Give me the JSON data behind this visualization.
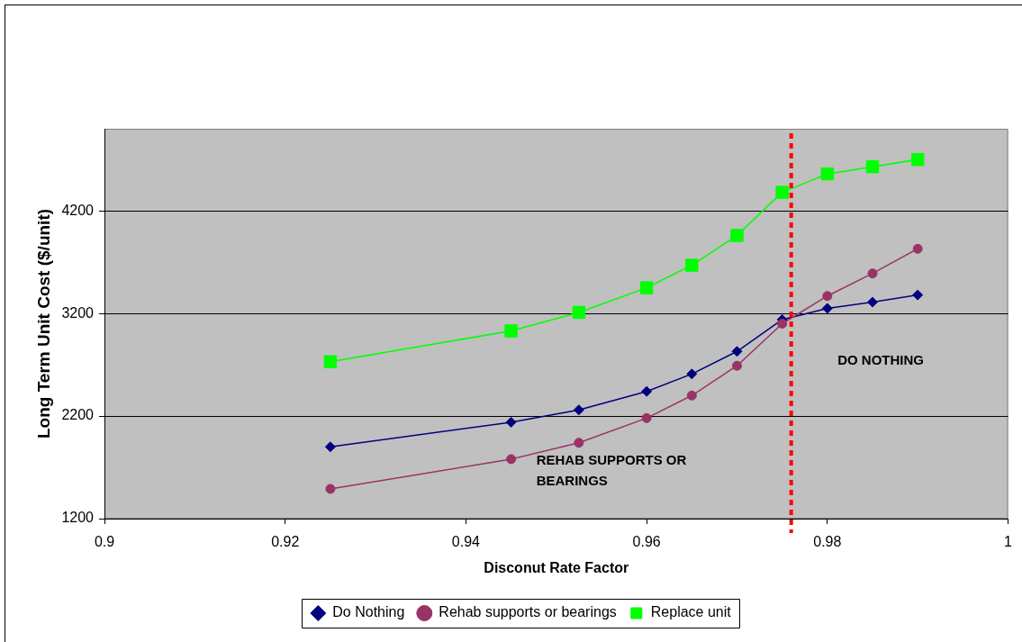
{
  "chart_data": {
    "type": "line",
    "xlabel": "Disconut Rate Factor",
    "ylabel": "Long Term Unit Cost ($/unit)",
    "x": [
      0.925,
      0.945,
      0.9525,
      0.96,
      0.965,
      0.97,
      0.975,
      0.98,
      0.985,
      0.99
    ],
    "series": [
      {
        "name": "Do Nothing",
        "color": "#000080",
        "marker": "diamond",
        "values": [
          1900,
          2140,
          2260,
          2440,
          2610,
          2830,
          3140,
          3250,
          3310,
          3380
        ]
      },
      {
        "name": "Rehab supports or bearings",
        "color": "#993366",
        "marker": "circle",
        "values": [
          1490,
          1780,
          1940,
          2180,
          2400,
          2690,
          3100,
          3370,
          3590,
          3830
        ]
      },
      {
        "name": "Replace unit",
        "color": "#00ff00",
        "marker": "square",
        "values": [
          2730,
          3030,
          3210,
          3450,
          3670,
          3960,
          4380,
          4560,
          4630,
          4700
        ]
      }
    ],
    "xlim": [
      0.9,
      1
    ],
    "xticks": [
      0.9,
      0.92,
      0.94,
      0.96,
      0.98,
      1
    ],
    "ylim": [
      1200,
      5000
    ],
    "yticks": [
      1200,
      2200,
      3200,
      4200
    ],
    "grid": "y",
    "legend": "bottom",
    "line_style": "solid",
    "ref_lines": [
      {
        "axis": "x",
        "value": 0.976,
        "color": "#ff0000",
        "line_style": "dotted"
      }
    ],
    "annotations": [
      "REHAB SUPPORTS OR BEARINGS",
      "DO NOTHING"
    ]
  }
}
